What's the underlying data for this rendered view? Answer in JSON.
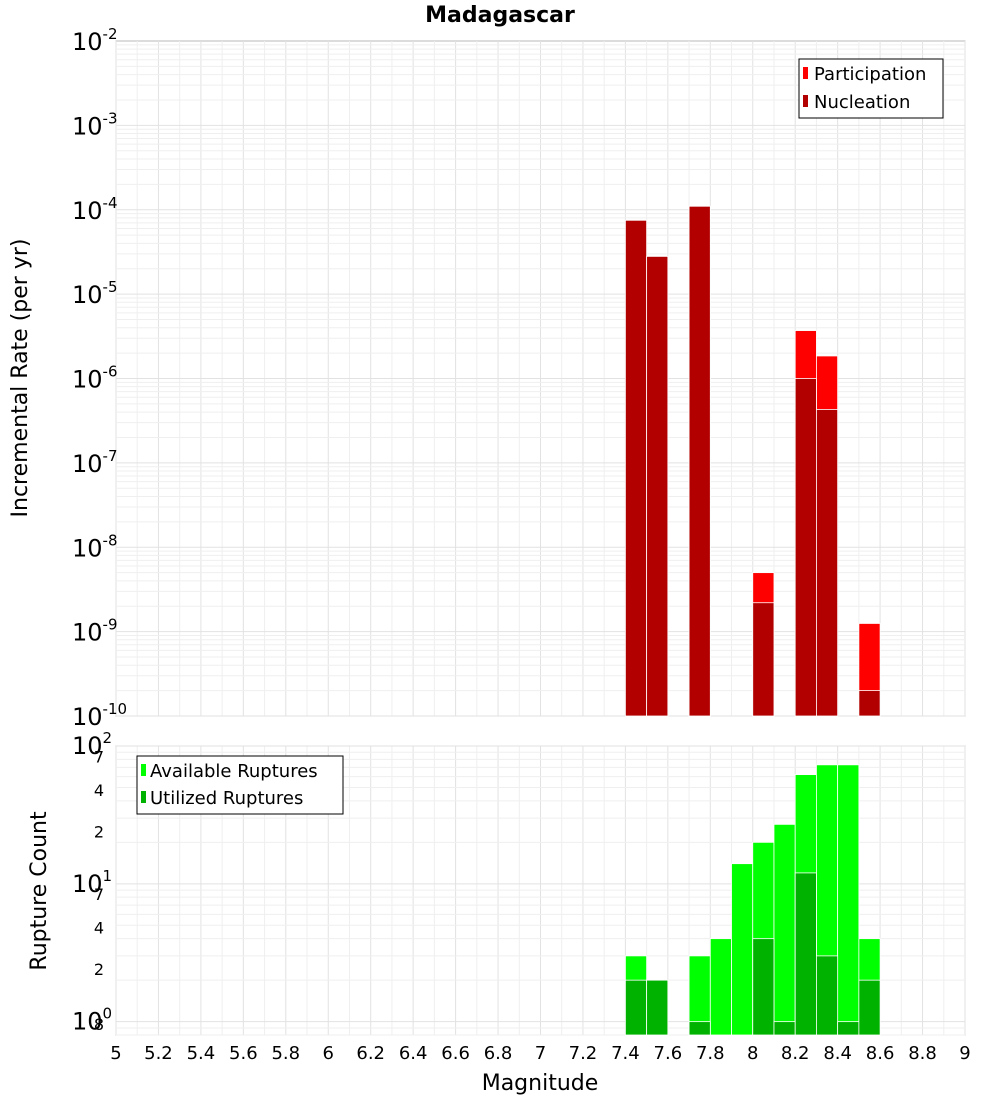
{
  "chart_data": [
    {
      "type": "bar",
      "title": "Madagascar",
      "xlabel": "",
      "ylabel": "Incremental Rate (per yr)",
      "yscale": "log",
      "ylim": [
        1e-10,
        0.01
      ],
      "xlim": [
        5,
        9
      ],
      "grid": true,
      "legend_position": "top-right",
      "y_tick_labels": [
        {
          "base": "10",
          "exp": "-10"
        },
        {
          "base": "10",
          "exp": "-9"
        },
        {
          "base": "10",
          "exp": "-8"
        },
        {
          "base": "10",
          "exp": "-7"
        },
        {
          "base": "10",
          "exp": "-6"
        },
        {
          "base": "10",
          "exp": "-5"
        },
        {
          "base": "10",
          "exp": "-4"
        },
        {
          "base": "10",
          "exp": "-3"
        },
        {
          "base": "10",
          "exp": "-2"
        }
      ],
      "series": [
        {
          "name": "Participation",
          "color": "#ff0000",
          "points": [
            {
              "x": 7.45,
              "y": 7.5e-05
            },
            {
              "x": 7.55,
              "y": 2.8e-05
            },
            {
              "x": 7.75,
              "y": 0.00011
            },
            {
              "x": 8.05,
              "y": 5e-09
            },
            {
              "x": 8.25,
              "y": 3.7e-06
            },
            {
              "x": 8.35,
              "y": 1.85e-06
            },
            {
              "x": 8.55,
              "y": 1.25e-09
            }
          ]
        },
        {
          "name": "Nucleation",
          "color": "#b20000",
          "points": [
            {
              "x": 7.45,
              "y": 7.5e-05
            },
            {
              "x": 7.55,
              "y": 2.8e-05
            },
            {
              "x": 7.75,
              "y": 0.00011
            },
            {
              "x": 8.05,
              "y": 2.2e-09
            },
            {
              "x": 8.25,
              "y": 1e-06
            },
            {
              "x": 8.35,
              "y": 4.3e-07
            },
            {
              "x": 8.55,
              "y": 2e-10
            }
          ]
        }
      ]
    },
    {
      "type": "bar",
      "title": "",
      "xlabel": "Magnitude",
      "ylabel": "Rupture Count",
      "yscale": "log",
      "ylim": [
        0.8,
        100
      ],
      "xlim": [
        5,
        9
      ],
      "grid": true,
      "legend_position": "top-left",
      "x_ticks": [
        "5",
        "5.2",
        "5.4",
        "5.6",
        "5.8",
        "6",
        "6.2",
        "6.4",
        "6.6",
        "6.8",
        "7",
        "7.2",
        "7.4",
        "7.6",
        "7.8",
        "8",
        "8.2",
        "8.4",
        "8.6",
        "8.8",
        "9"
      ],
      "y_major_labels": [
        {
          "value": 1,
          "base": "10",
          "exp": "0"
        },
        {
          "value": 10,
          "base": "10",
          "exp": "1"
        },
        {
          "value": 100,
          "base": "10",
          "exp": "2"
        }
      ],
      "y_minor_labels": [
        {
          "value": 0.8,
          "label": "8"
        },
        {
          "value": 2,
          "label": "2"
        },
        {
          "value": 4,
          "label": "4"
        },
        {
          "value": 7,
          "label": "7"
        },
        {
          "value": 20,
          "label": "2"
        },
        {
          "value": 40,
          "label": "4"
        },
        {
          "value": 70,
          "label": "7"
        }
      ],
      "series": [
        {
          "name": "Available Ruptures",
          "color": "#00ff00",
          "points": [
            {
              "x": 7.45,
              "y": 3
            },
            {
              "x": 7.55,
              "y": 2
            },
            {
              "x": 7.75,
              "y": 3
            },
            {
              "x": 7.85,
              "y": 4
            },
            {
              "x": 7.95,
              "y": 14
            },
            {
              "x": 8.05,
              "y": 20
            },
            {
              "x": 8.15,
              "y": 27
            },
            {
              "x": 8.25,
              "y": 62
            },
            {
              "x": 8.35,
              "y": 73
            },
            {
              "x": 8.45,
              "y": 73
            },
            {
              "x": 8.55,
              "y": 4
            }
          ]
        },
        {
          "name": "Utilized Ruptures",
          "color": "#00b200",
          "points": [
            {
              "x": 7.45,
              "y": 2
            },
            {
              "x": 7.55,
              "y": 2
            },
            {
              "x": 7.75,
              "y": 1
            },
            {
              "x": 8.05,
              "y": 4
            },
            {
              "x": 8.15,
              "y": 1
            },
            {
              "x": 8.25,
              "y": 12
            },
            {
              "x": 8.35,
              "y": 3
            },
            {
              "x": 8.45,
              "y": 1
            },
            {
              "x": 8.55,
              "y": 2
            }
          ]
        }
      ]
    }
  ]
}
